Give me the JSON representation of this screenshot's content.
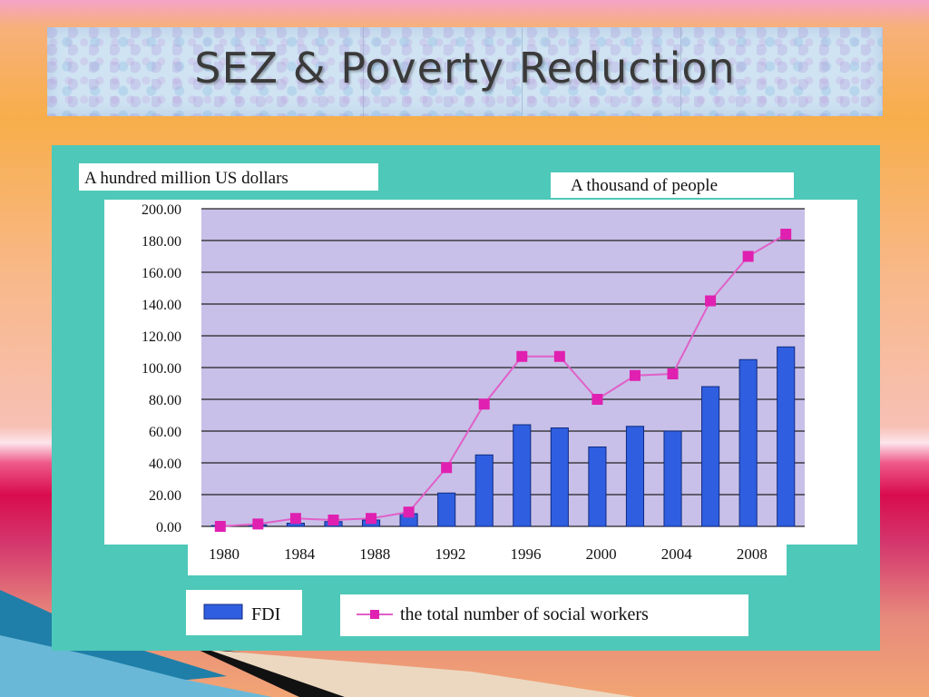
{
  "slide": {
    "title": "SEZ & Poverty Reduction"
  },
  "colors": {
    "panel": "#4ec8b8",
    "plot_band": "#c8c0e8",
    "bar": "#2f5fe0",
    "line": "#e060c8",
    "marker": "#e020b0"
  },
  "chart_data": {
    "type": "bar",
    "ylabel_left": "A hundred million US dollars",
    "ylabel_right": "A thousand of people",
    "x_tick_labels": [
      "1980",
      "1984",
      "1988",
      "1992",
      "1996",
      "2000",
      "2004",
      "2008"
    ],
    "y_tick_labels": [
      "0.00",
      "20.00",
      "40.00",
      "60.00",
      "80.00",
      "100.00",
      "120.00",
      "140.00",
      "160.00",
      "180.00",
      "200.00"
    ],
    "ylim": [
      0,
      200
    ],
    "grid": true,
    "categories": [
      1980,
      1982,
      1984,
      1986,
      1988,
      1990,
      1992,
      1994,
      1996,
      1998,
      2000,
      2002,
      2004,
      2006,
      2008,
      2010
    ],
    "series": [
      {
        "name": "FDI",
        "kind": "bar",
        "values": [
          0.5,
          1,
          2,
          3,
          4,
          8,
          21,
          45,
          64,
          62,
          50,
          63,
          60,
          88,
          105,
          113
        ]
      },
      {
        "name": "the total number of social workers",
        "kind": "line",
        "values": [
          0,
          1.5,
          5,
          4,
          5,
          9,
          37,
          77,
          107,
          107,
          80,
          95,
          96,
          142,
          170,
          184
        ]
      }
    ],
    "legend_position": "bottom"
  }
}
